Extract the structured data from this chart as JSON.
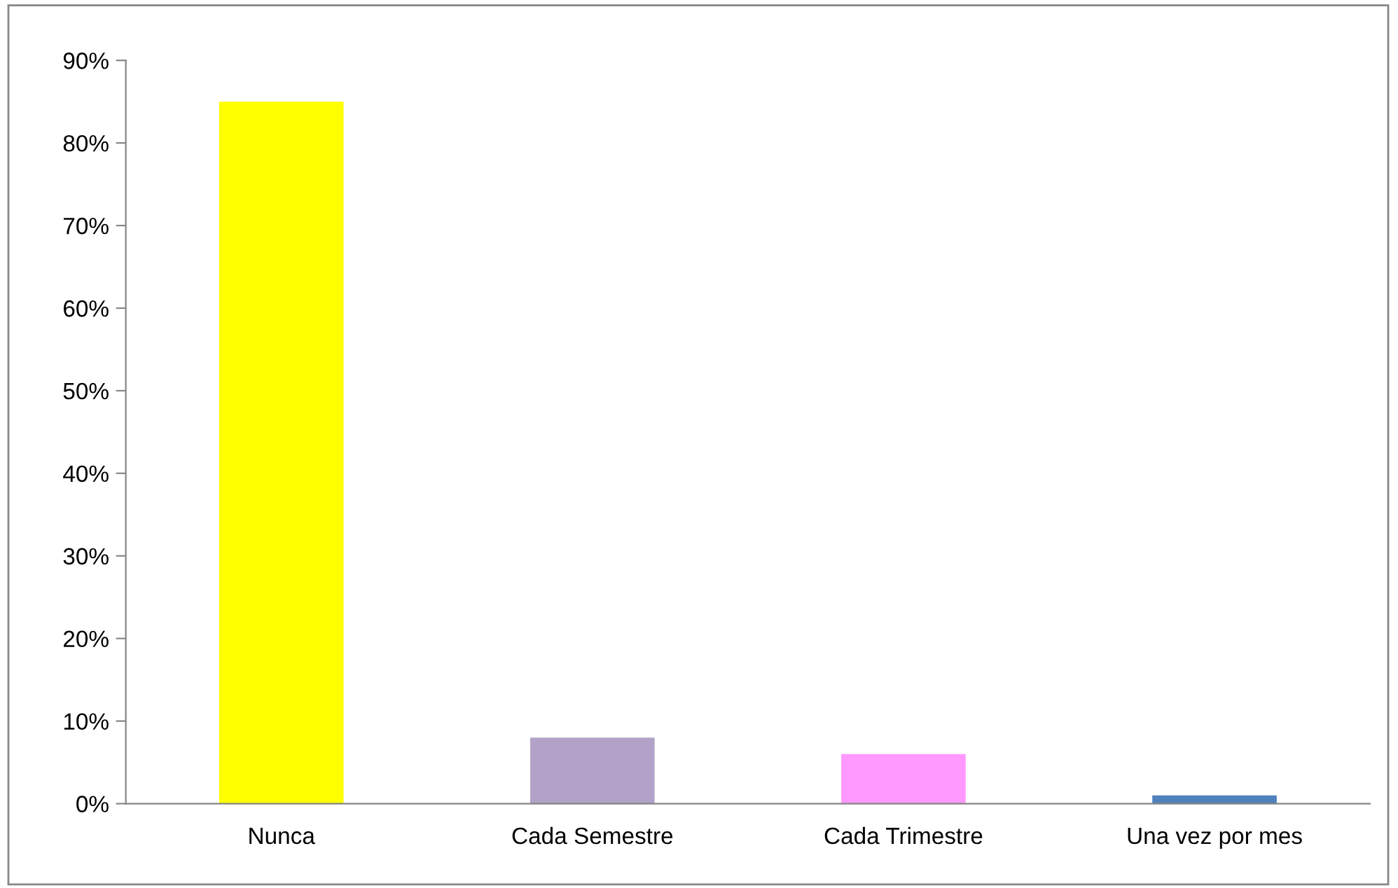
{
  "chart_data": {
    "type": "bar",
    "categories": [
      "Nunca",
      "Cada Semestre",
      "Cada Trimestre",
      "Una vez por mes"
    ],
    "values": [
      85,
      8,
      6,
      1
    ],
    "colors": [
      "#ffff00",
      "#b3a2c7",
      "#ff99ff",
      "#4f81bd"
    ],
    "ylim": [
      0,
      90
    ],
    "yticks": [
      {
        "value": 0,
        "label": "0%"
      },
      {
        "value": 10,
        "label": "10%"
      },
      {
        "value": 20,
        "label": "20%"
      },
      {
        "value": 30,
        "label": "30%"
      },
      {
        "value": 40,
        "label": "40%"
      },
      {
        "value": 50,
        "label": "50%"
      },
      {
        "value": 60,
        "label": "60%"
      },
      {
        "value": 70,
        "label": "70%"
      },
      {
        "value": 80,
        "label": "80%"
      },
      {
        "value": 90,
        "label": "90%"
      }
    ],
    "grid": false,
    "legend": false
  }
}
